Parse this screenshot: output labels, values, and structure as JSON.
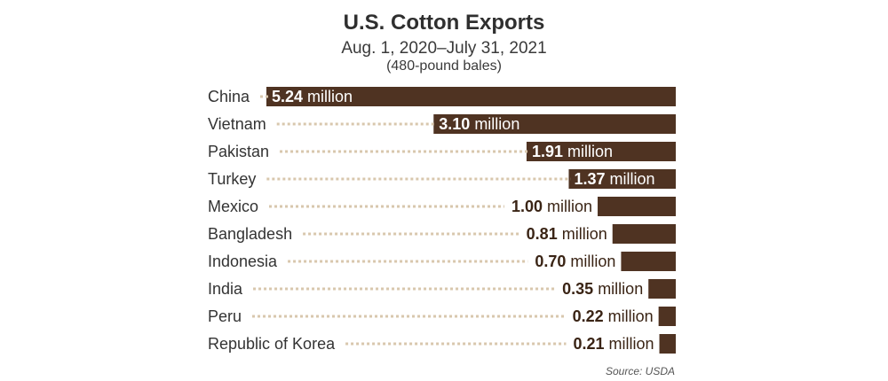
{
  "chart_data": {
    "type": "bar",
    "orientation": "horizontal",
    "title": "U.S. Cotton Exports",
    "subtitle": "Aug. 1, 2020–July 31, 2021",
    "unit_note": "(480-pound bales)",
    "categories": [
      "China",
      "Vietnam",
      "Pakistan",
      "Turkey",
      "Mexico",
      "Bangladesh",
      "Indonesia",
      "India",
      "Peru",
      "Republic of Korea"
    ],
    "values": [
      5.24,
      3.1,
      1.91,
      1.37,
      1.0,
      0.81,
      0.7,
      0.35,
      0.22,
      0.21
    ],
    "value_numbers": [
      "5.24",
      "3.10",
      "1.91",
      "1.37",
      "1.00",
      "0.81",
      "0.70",
      "0.35",
      "0.22",
      "0.21"
    ],
    "value_unit": "million",
    "bar_color": "#4f3322",
    "leader_color": "#d8c7ad",
    "source": "Source: USDA"
  }
}
